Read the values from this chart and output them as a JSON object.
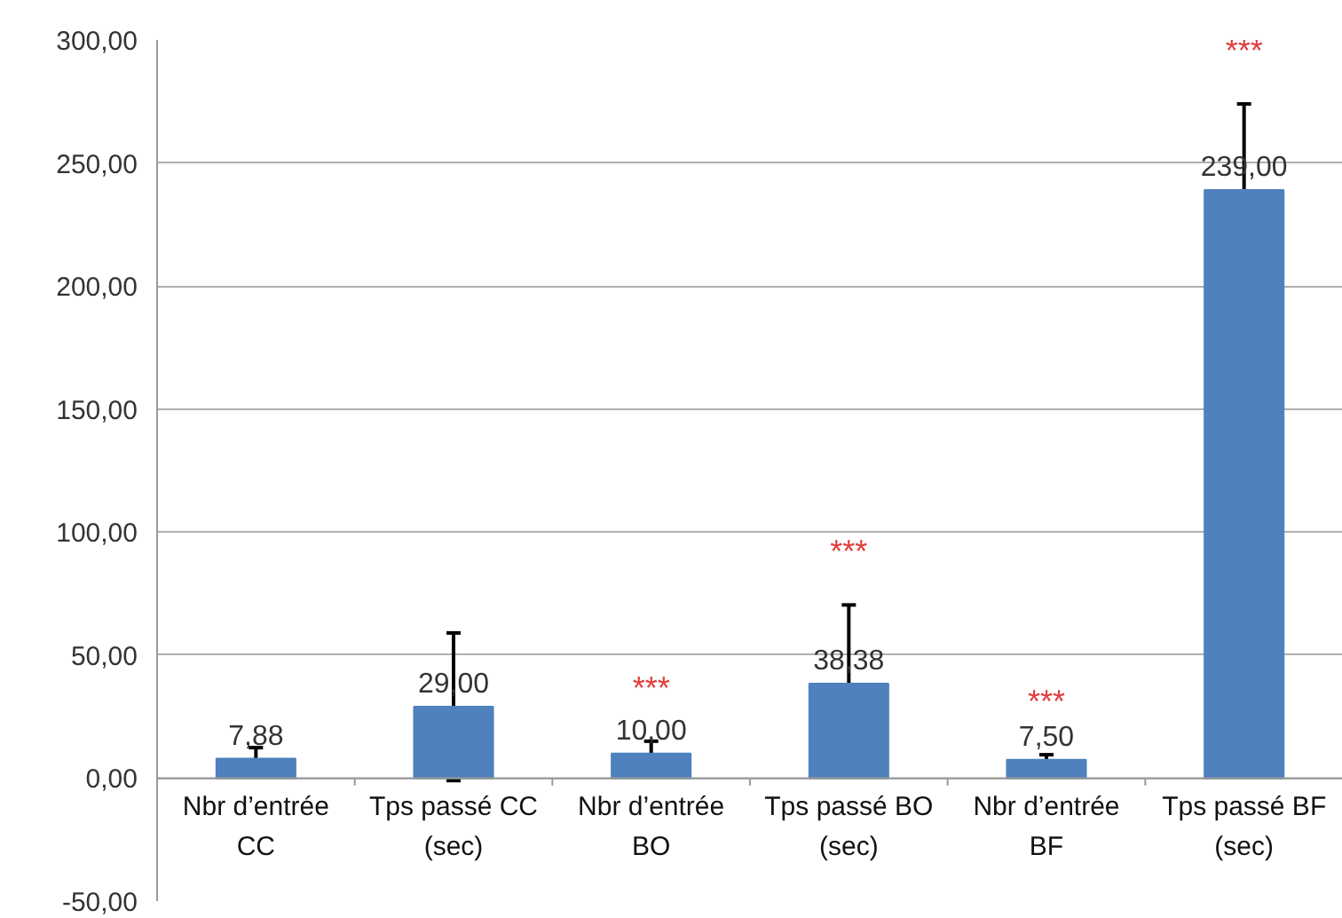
{
  "chart_data": {
    "type": "bar",
    "categories": [
      "Nbr d’entrée\nCC",
      "Tps passé CC\n(sec)",
      "Nbr d’entrée\nBO",
      "Tps passé BO\n(sec)",
      "Nbr d’entrée\nBF",
      "Tps passé BF\n(sec)"
    ],
    "values": [
      7.88,
      29.0,
      10.0,
      38.38,
      7.5,
      239.0
    ],
    "value_labels": [
      "7,88",
      "29,00",
      "10,00",
      "38,38",
      "7,50",
      "239,00"
    ],
    "errors": [
      4.5,
      30,
      5,
      32,
      2,
      35
    ],
    "color": "#4f81bd",
    "ylim": [
      -50,
      300
    ],
    "yticks": [
      {
        "value": -50,
        "label": "-50,00"
      },
      {
        "value": 0,
        "label": "0,00"
      },
      {
        "value": 50,
        "label": "50,00"
      },
      {
        "value": 100,
        "label": "100,00"
      },
      {
        "value": 150,
        "label": "150,00"
      },
      {
        "value": 200,
        "label": "200,00"
      },
      {
        "value": 250,
        "label": "250,00"
      },
      {
        "value": 300,
        "label": "300,00"
      }
    ],
    "grid": "y",
    "annotations": [
      "***",
      "***",
      "***",
      "***"
    ]
  }
}
